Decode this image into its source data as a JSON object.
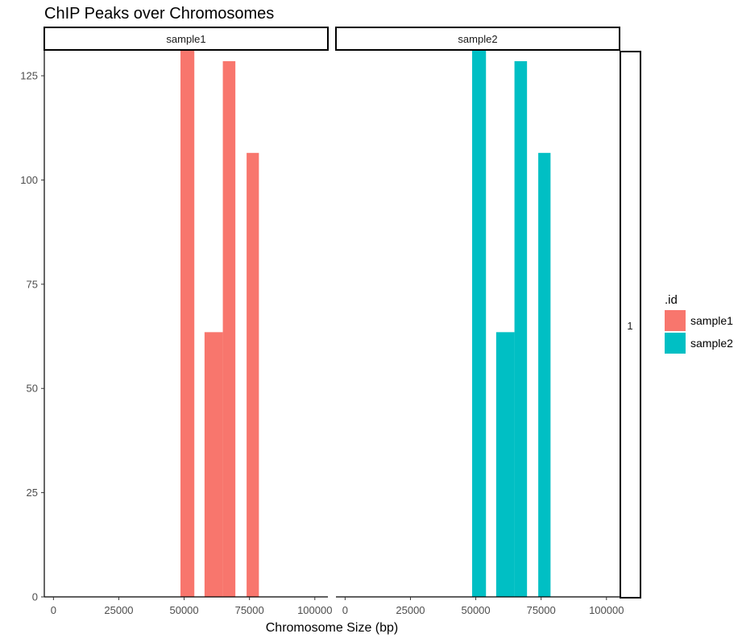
{
  "chart_data": {
    "type": "bar",
    "title": "ChIP Peaks over Chromosomes",
    "xlabel": "Chromosome Size (bp)",
    "ylabel": "",
    "xlim": [
      -3500,
      105000
    ],
    "ylim": [
      0,
      131
    ],
    "x_ticks": [
      0,
      25000,
      50000,
      75000,
      100000
    ],
    "x_tick_labels": [
      "0",
      "25000",
      "50000",
      "75000",
      "100000"
    ],
    "y_ticks": [
      0,
      25,
      50,
      75,
      100,
      125
    ],
    "y_tick_labels": [
      "0",
      "25",
      "50",
      "75",
      "100",
      "125"
    ],
    "bin_edges": [
      48600,
      53900,
      57800,
      64800,
      69600,
      73900,
      78600
    ],
    "panels": [
      {
        "name": "sample1",
        "color": "#F8766D",
        "bars": [
          {
            "x0": 48600,
            "x1": 53900,
            "value": 131
          },
          {
            "x0": 57800,
            "x1": 64800,
            "value": 63.5
          },
          {
            "x0": 64800,
            "x1": 69600,
            "value": 128.5
          },
          {
            "x0": 73900,
            "x1": 78600,
            "value": 106.5
          }
        ]
      },
      {
        "name": "sample2",
        "color": "#00BFC4",
        "bars": [
          {
            "x0": 48600,
            "x1": 53900,
            "value": 131
          },
          {
            "x0": 57800,
            "x1": 64800,
            "value": 63.5
          },
          {
            "x0": 64800,
            "x1": 69600,
            "value": 128.5
          },
          {
            "x0": 73900,
            "x1": 78600,
            "value": 106.5
          }
        ]
      }
    ],
    "row_strip_label": "1",
    "legend": {
      "title": ".id",
      "placement": "right",
      "entries": [
        {
          "name": "sample1",
          "color": "#F8766D"
        },
        {
          "name": "sample2",
          "color": "#00BFC4"
        }
      ]
    },
    "grid": false
  }
}
